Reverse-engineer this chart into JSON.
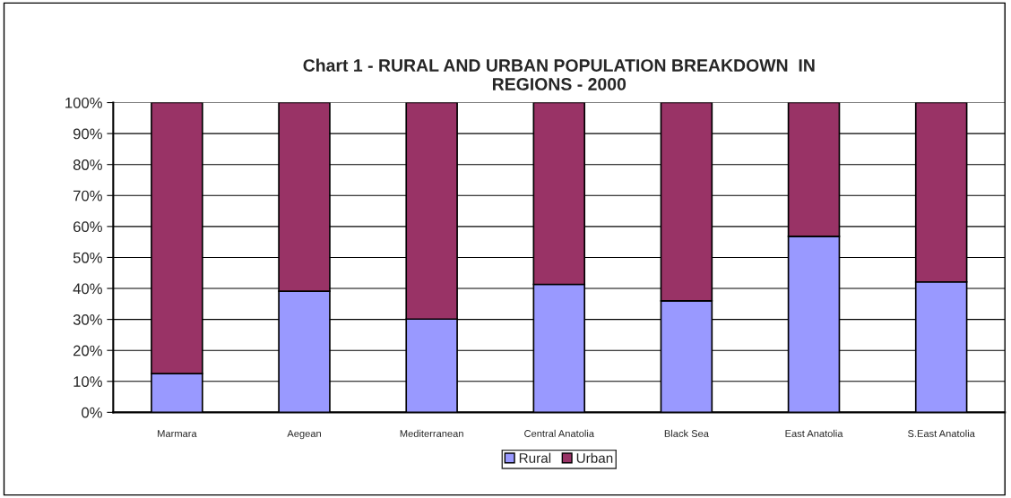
{
  "chart_data": {
    "type": "bar",
    "title": "Chart 1 - RURAL AND URBAN POPULATION BREAKDOWN  IN\nREGIONS - 2000",
    "categories": [
      "Marmara",
      "Aegean",
      "Mediterranean",
      "Central Anatolia",
      "Black Sea",
      "East Anatolia",
      "S.East Anatolia"
    ],
    "series": [
      {
        "name": "Rural",
        "color": "#9999ff",
        "values": [
          12.5,
          39.1,
          30.1,
          41.3,
          36.0,
          56.8,
          42.1
        ]
      },
      {
        "name": "Urban",
        "color": "#993366",
        "values": [
          87.5,
          60.9,
          69.9,
          58.7,
          64.0,
          43.2,
          57.9
        ]
      }
    ],
    "stacked": true,
    "ylim": [
      0,
      100
    ],
    "yticks": [
      {
        "value": 0,
        "label": "0%"
      },
      {
        "value": 10,
        "label": "10%"
      },
      {
        "value": 20,
        "label": "20%"
      },
      {
        "value": 30,
        "label": "30%"
      },
      {
        "value": 40,
        "label": "40%"
      },
      {
        "value": 50,
        "label": "50%"
      },
      {
        "value": 60,
        "label": "60%"
      },
      {
        "value": 70,
        "label": "70%"
      },
      {
        "value": 80,
        "label": "80%"
      },
      {
        "value": 90,
        "label": "90%"
      },
      {
        "value": 100,
        "label": "100%"
      }
    ],
    "grid": "y",
    "legend": "bottom"
  }
}
